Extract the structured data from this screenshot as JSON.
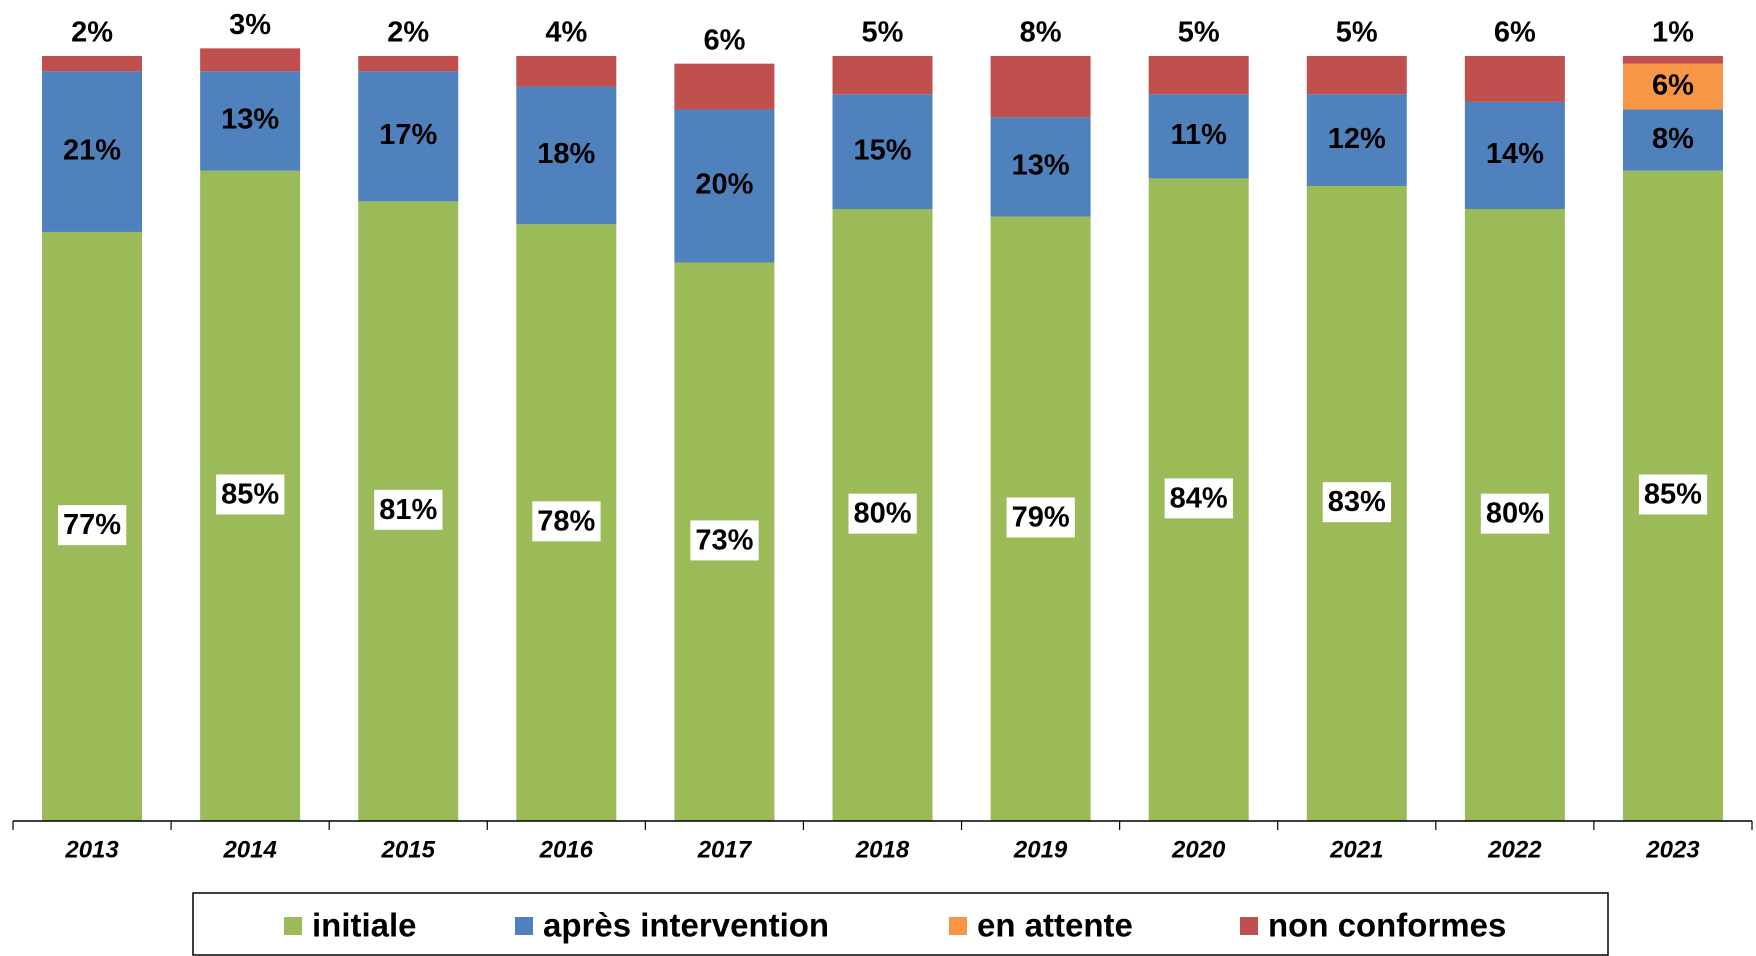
{
  "chart_data": {
    "type": "stacked_bar",
    "categories": [
      "2013",
      "2014",
      "2015",
      "2016",
      "2017",
      "2018",
      "2019",
      "2020",
      "2021",
      "2022",
      "2023"
    ],
    "ylim": [
      0,
      100
    ],
    "series": [
      {
        "name": "initiale",
        "color": "#9bbb59",
        "values": [
          77,
          85,
          81,
          78,
          73,
          80,
          79,
          84,
          83,
          80,
          85
        ],
        "value_labels": [
          "77%",
          "85%",
          "81%",
          "78%",
          "73%",
          "80%",
          "79%",
          "84%",
          "83%",
          "80%",
          "85%"
        ]
      },
      {
        "name": "après intervention",
        "color": "#4f81bd",
        "values": [
          21,
          13,
          17,
          18,
          20,
          15,
          13,
          11,
          12,
          14,
          8
        ],
        "value_labels": [
          "21%",
          "13%",
          "17%",
          "18%",
          "20%",
          "15%",
          "13%",
          "11%",
          "12%",
          "14%",
          "8%"
        ]
      },
      {
        "name": "en attente",
        "color": "#f79646",
        "values": [
          null,
          null,
          null,
          null,
          null,
          null,
          null,
          null,
          null,
          null,
          6
        ],
        "value_labels": [
          null,
          null,
          null,
          null,
          null,
          null,
          null,
          null,
          null,
          null,
          "6%"
        ]
      },
      {
        "name": "non conformes",
        "color": "#c0504d",
        "values": [
          2,
          3,
          2,
          4,
          6,
          5,
          8,
          5,
          5,
          6,
          1
        ],
        "value_labels": [
          "2%",
          "3%",
          "2%",
          "4%",
          "6%",
          "5%",
          "8%",
          "5%",
          "5%",
          "6%",
          "1%"
        ]
      }
    ]
  }
}
